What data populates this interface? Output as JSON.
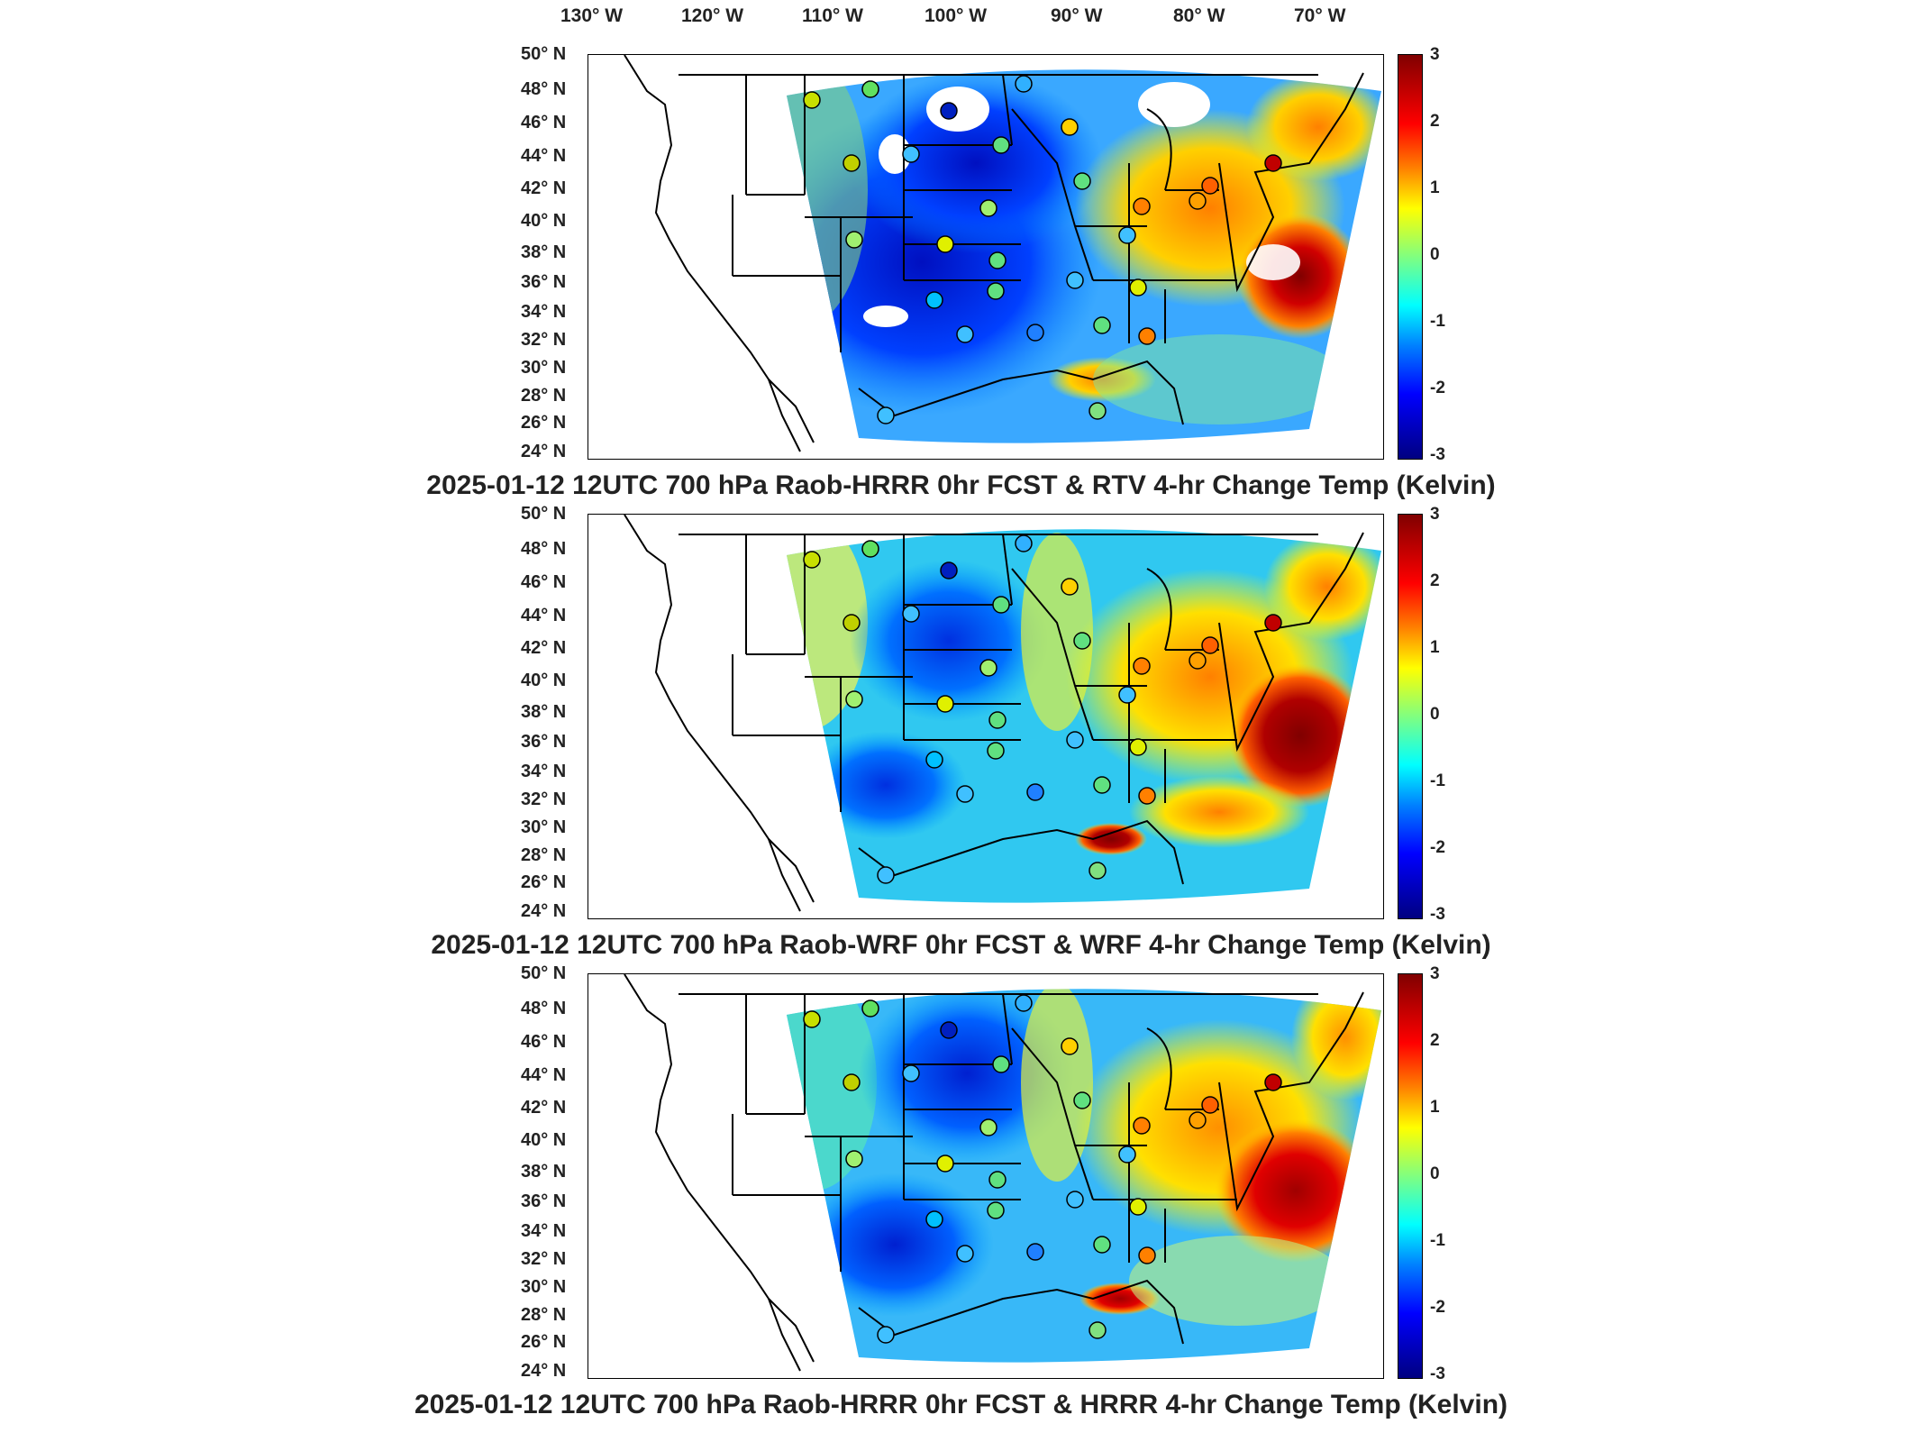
{
  "lon_ticks": [
    "130° W",
    "120° W",
    "110° W",
    "100° W",
    "90° W",
    "80° W",
    "70° W"
  ],
  "lat_ticks": [
    "50° N",
    "48° N",
    "46° N",
    "44° N",
    "42° N",
    "40° N",
    "38° N",
    "36° N",
    "34° N",
    "32° N",
    "30° N",
    "28° N",
    "26° N",
    "24° N"
  ],
  "colorbar_ticks": [
    "3",
    "2",
    "1",
    "0",
    "-1",
    "-2",
    "-3"
  ],
  "colorbar_colors": [
    "#800000",
    "#ff0000",
    "#ff8000",
    "#ffff00",
    "#80ff80",
    "#00ffff",
    "#0080ff",
    "#0000ff",
    "#000080"
  ],
  "panels": [
    {
      "id": "rtv",
      "title": "2025-01-12 12UTC 700 hPa Raob-HRRR 0hr FCST & RTV 4-hr Change Temp (Kelvin)"
    },
    {
      "id": "wrf",
      "title": "2025-01-12 12UTC 700 hPa Raob-WRF 0hr FCST & WRF 4-hr Change Temp (Kelvin)"
    },
    {
      "id": "hrrr",
      "title": "2025-01-12 12UTC 700 hPa Raob-HRRR 0hr FCST & HRRR 4-hr Change Temp (Kelvin)"
    }
  ]
}
